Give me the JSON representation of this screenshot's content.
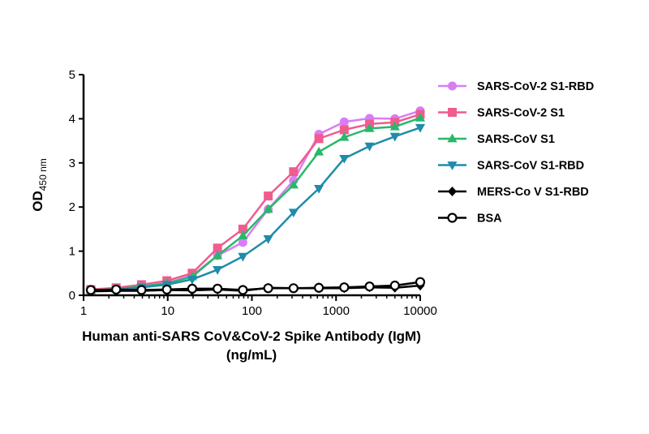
{
  "chart_data": {
    "type": "line",
    "x_scale": "log",
    "xlim": [
      1,
      10000
    ],
    "ylim": [
      0,
      5
    ],
    "x_ticks": [
      "1",
      "10",
      "100",
      "1000",
      "10000"
    ],
    "y_ticks": [
      "0",
      "1",
      "2",
      "3",
      "4",
      "5"
    ],
    "ylabel_main": "OD",
    "ylabel_sub": "450 nm",
    "xlabel_line1": "Human anti-SARS CoV&CoV-2 Spike Antibody (IgM)",
    "xlabel_line2": "(ng/mL)",
    "grid": false,
    "legend_position": "right",
    "x": [
      1.22,
      2.44,
      4.88,
      9.77,
      19.53,
      39.06,
      78.13,
      156.25,
      312.5,
      625,
      1250,
      2500,
      5000,
      10000
    ],
    "series": [
      {
        "name": "SARS-CoV-2 S1-RBD",
        "color": "#d97df5",
        "marker": "circle",
        "values": [
          0.12,
          0.15,
          0.2,
          0.28,
          0.45,
          0.9,
          1.2,
          1.95,
          2.6,
          3.65,
          3.93,
          4.01,
          4.0,
          4.18
        ]
      },
      {
        "name": "SARS-CoV-2 S1",
        "color": "#f05c8e",
        "marker": "square",
        "values": [
          0.13,
          0.17,
          0.24,
          0.33,
          0.5,
          1.07,
          1.5,
          2.25,
          2.8,
          3.55,
          3.75,
          3.88,
          3.92,
          4.1
        ]
      },
      {
        "name": "SARS-CoV S1",
        "color": "#28b86b",
        "marker": "triangle-up",
        "values": [
          0.11,
          0.14,
          0.2,
          0.27,
          0.42,
          0.9,
          1.35,
          1.95,
          2.5,
          3.25,
          3.58,
          3.78,
          3.82,
          4.02
        ]
      },
      {
        "name": "SARS-CoV S1-RBD",
        "color": "#1f8cab",
        "marker": "triangle-down",
        "values": [
          0.1,
          0.13,
          0.18,
          0.24,
          0.36,
          0.58,
          0.88,
          1.28,
          1.88,
          2.42,
          3.1,
          3.38,
          3.6,
          3.8
        ]
      },
      {
        "name": "MERS-Co V S1-RBD",
        "color": "#000000",
        "marker": "diamond",
        "values": [
          0.09,
          0.1,
          0.1,
          0.12,
          0.11,
          0.13,
          0.1,
          0.17,
          0.16,
          0.16,
          0.16,
          0.18,
          0.17,
          0.22
        ]
      },
      {
        "name": "BSA",
        "color": "#000000",
        "marker": "circle-open",
        "values": [
          0.12,
          0.13,
          0.12,
          0.13,
          0.15,
          0.15,
          0.12,
          0.16,
          0.16,
          0.17,
          0.18,
          0.2,
          0.22,
          0.3
        ]
      }
    ]
  }
}
